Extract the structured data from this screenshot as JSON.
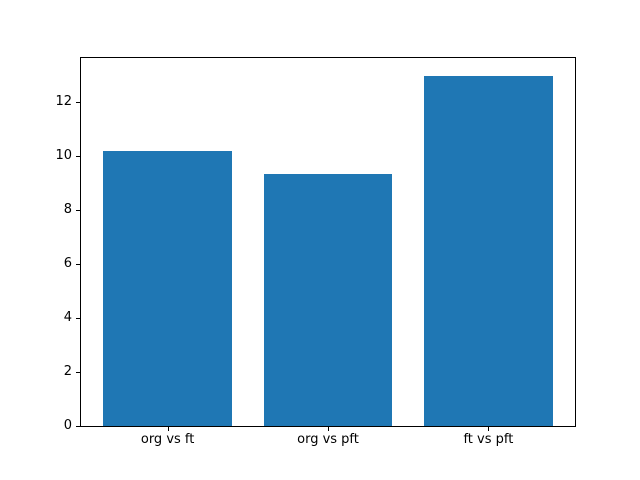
{
  "chart_data": {
    "type": "bar",
    "title": "",
    "xlabel": "",
    "ylabel": "",
    "categories": [
      "org vs ft",
      "org vs pft",
      "ft vs pft"
    ],
    "values": [
      10.2,
      9.35,
      13.0
    ],
    "ylim": [
      0,
      13.65
    ],
    "yticks": [
      0,
      2,
      4,
      6,
      8,
      10,
      12
    ],
    "ytick_labels": [
      "0",
      "2",
      "4",
      "6",
      "8",
      "10",
      "12"
    ],
    "bar_color": "#1f77b4",
    "background_color": "#ffffff",
    "spine_color": "#000000",
    "grid": false,
    "legend": null,
    "bar_width_fraction": 0.8,
    "x_positions": [
      0,
      1,
      2
    ],
    "xlim": [
      -0.54,
      2.54
    ]
  }
}
